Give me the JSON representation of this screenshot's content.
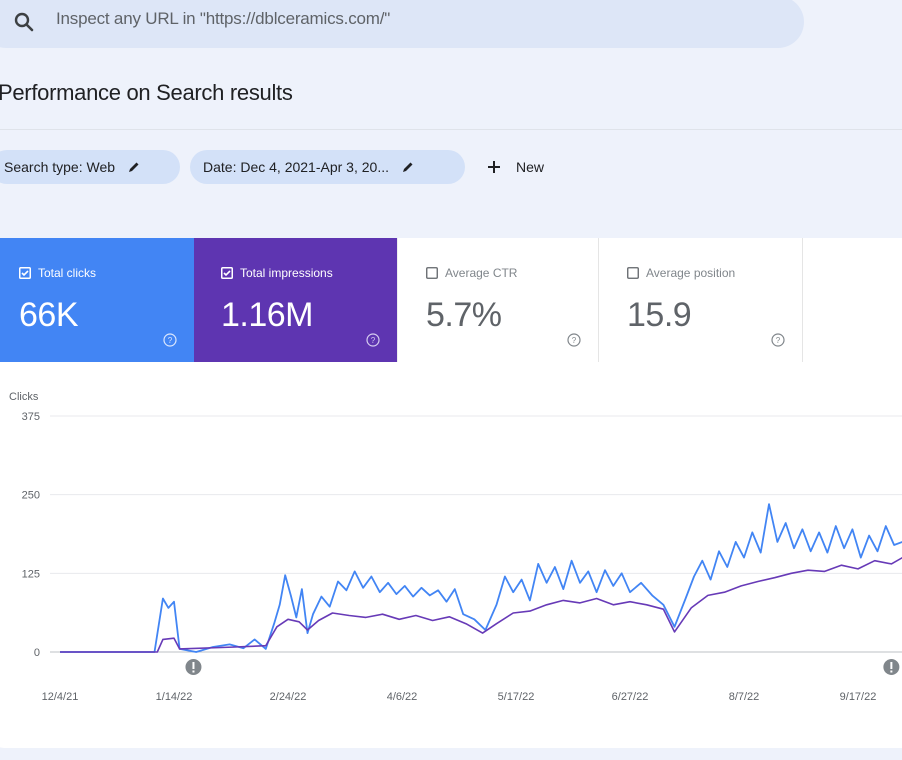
{
  "search": {
    "placeholder": "Inspect any URL in \"https://dblceramics.com/\"",
    "icon": "search-icon"
  },
  "page": {
    "title": "Performance on Search results"
  },
  "filters": {
    "search_type": "Search type: Web",
    "date": "Date: Dec 4, 2021-Apr 3, 20...",
    "new_label": "New"
  },
  "metrics": [
    {
      "label": "Total clicks",
      "value": "66K",
      "checked": true,
      "color": "#4285f4"
    },
    {
      "label": "Total impressions",
      "value": "1.16M",
      "checked": true,
      "color": "#5e35b1"
    },
    {
      "label": "Average CTR",
      "value": "5.7%",
      "checked": false
    },
    {
      "label": "Average position",
      "value": "15.9",
      "checked": false
    }
  ],
  "colors": {
    "clicks": "#4285f4",
    "impressions": "#673ab7",
    "grid": "#e8eaed",
    "chip": "#d3e1f8"
  },
  "chart_data": {
    "type": "line",
    "ylabel": "Clicks",
    "ylim": [
      0,
      375
    ],
    "y_ticks": [
      "0",
      "125",
      "250",
      "375"
    ],
    "x_ticks": [
      "12/4/21",
      "1/14/22",
      "2/24/22",
      "4/6/22",
      "5/17/22",
      "6/27/22",
      "8/7/22",
      "9/17/22"
    ],
    "annotation_markers": [
      "1/21/22",
      "9/29/22"
    ],
    "series": [
      {
        "color": "#4285f4",
        "points": [
          [
            "2021-12-04",
            0
          ],
          [
            "2021-12-20",
            0
          ],
          [
            "2022-01-07",
            0
          ],
          [
            "2022-01-10",
            85
          ],
          [
            "2022-01-12",
            70
          ],
          [
            "2022-01-14",
            80
          ],
          [
            "2022-01-16",
            5
          ],
          [
            "2022-01-22",
            0
          ],
          [
            "2022-01-28",
            8
          ],
          [
            "2022-02-03",
            12
          ],
          [
            "2022-02-08",
            6
          ],
          [
            "2022-02-12",
            20
          ],
          [
            "2022-02-16",
            5
          ],
          [
            "2022-02-19",
            45
          ],
          [
            "2022-02-21",
            75
          ],
          [
            "2022-02-23",
            122
          ],
          [
            "2022-02-25",
            90
          ],
          [
            "2022-02-27",
            55
          ],
          [
            "2022-03-01",
            100
          ],
          [
            "2022-03-03",
            30
          ],
          [
            "2022-03-05",
            60
          ],
          [
            "2022-03-08",
            88
          ],
          [
            "2022-03-11",
            72
          ],
          [
            "2022-03-14",
            112
          ],
          [
            "2022-03-17",
            98
          ],
          [
            "2022-03-20",
            128
          ],
          [
            "2022-03-23",
            102
          ],
          [
            "2022-03-26",
            120
          ],
          [
            "2022-03-29",
            95
          ],
          [
            "2022-04-01",
            110
          ],
          [
            "2022-04-04",
            92
          ],
          [
            "2022-04-07",
            105
          ],
          [
            "2022-04-10",
            88
          ],
          [
            "2022-04-13",
            102
          ],
          [
            "2022-04-16",
            90
          ],
          [
            "2022-04-19",
            98
          ],
          [
            "2022-04-22",
            80
          ],
          [
            "2022-04-25",
            100
          ],
          [
            "2022-04-28",
            60
          ],
          [
            "2022-05-02",
            52
          ],
          [
            "2022-05-06",
            35
          ],
          [
            "2022-05-10",
            75
          ],
          [
            "2022-05-13",
            120
          ],
          [
            "2022-05-16",
            95
          ],
          [
            "2022-05-19",
            115
          ],
          [
            "2022-05-22",
            82
          ],
          [
            "2022-05-25",
            140
          ],
          [
            "2022-05-28",
            110
          ],
          [
            "2022-05-31",
            135
          ],
          [
            "2022-06-03",
            100
          ],
          [
            "2022-06-06",
            145
          ],
          [
            "2022-06-09",
            110
          ],
          [
            "2022-06-12",
            128
          ],
          [
            "2022-06-15",
            95
          ],
          [
            "2022-06-18",
            130
          ],
          [
            "2022-06-21",
            105
          ],
          [
            "2022-06-24",
            125
          ],
          [
            "2022-06-27",
            95
          ],
          [
            "2022-07-01",
            110
          ],
          [
            "2022-07-05",
            90
          ],
          [
            "2022-07-09",
            75
          ],
          [
            "2022-07-13",
            40
          ],
          [
            "2022-07-17",
            85
          ],
          [
            "2022-07-20",
            120
          ],
          [
            "2022-07-23",
            145
          ],
          [
            "2022-07-26",
            115
          ],
          [
            "2022-07-29",
            160
          ],
          [
            "2022-08-01",
            135
          ],
          [
            "2022-08-04",
            175
          ],
          [
            "2022-08-07",
            150
          ],
          [
            "2022-08-10",
            190
          ],
          [
            "2022-08-13",
            158
          ],
          [
            "2022-08-16",
            235
          ],
          [
            "2022-08-19",
            175
          ],
          [
            "2022-08-22",
            205
          ],
          [
            "2022-08-25",
            165
          ],
          [
            "2022-08-28",
            195
          ],
          [
            "2022-08-31",
            160
          ],
          [
            "2022-09-03",
            190
          ],
          [
            "2022-09-06",
            158
          ],
          [
            "2022-09-09",
            200
          ],
          [
            "2022-09-12",
            165
          ],
          [
            "2022-09-15",
            195
          ],
          [
            "2022-09-18",
            150
          ],
          [
            "2022-09-21",
            185
          ],
          [
            "2022-09-24",
            160
          ],
          [
            "2022-09-27",
            200
          ],
          [
            "2022-09-30",
            170
          ],
          [
            "2022-10-03",
            175
          ]
        ]
      },
      {
        "color": "#673ab7",
        "points": [
          [
            "2021-12-04",
            0
          ],
          [
            "2022-01-08",
            0
          ],
          [
            "2022-01-10",
            20
          ],
          [
            "2022-01-14",
            22
          ],
          [
            "2022-01-16",
            5
          ],
          [
            "2022-02-05",
            8
          ],
          [
            "2022-02-16",
            10
          ],
          [
            "2022-02-20",
            40
          ],
          [
            "2022-02-24",
            52
          ],
          [
            "2022-02-28",
            48
          ],
          [
            "2022-03-03",
            35
          ],
          [
            "2022-03-07",
            50
          ],
          [
            "2022-03-12",
            62
          ],
          [
            "2022-03-18",
            58
          ],
          [
            "2022-03-24",
            55
          ],
          [
            "2022-03-30",
            60
          ],
          [
            "2022-04-05",
            52
          ],
          [
            "2022-04-11",
            58
          ],
          [
            "2022-04-17",
            50
          ],
          [
            "2022-04-23",
            56
          ],
          [
            "2022-04-29",
            45
          ],
          [
            "2022-05-05",
            30
          ],
          [
            "2022-05-10",
            45
          ],
          [
            "2022-05-16",
            62
          ],
          [
            "2022-05-22",
            65
          ],
          [
            "2022-05-28",
            75
          ],
          [
            "2022-06-03",
            82
          ],
          [
            "2022-06-09",
            78
          ],
          [
            "2022-06-15",
            85
          ],
          [
            "2022-06-21",
            75
          ],
          [
            "2022-06-27",
            80
          ],
          [
            "2022-07-03",
            75
          ],
          [
            "2022-07-09",
            68
          ],
          [
            "2022-07-13",
            32
          ],
          [
            "2022-07-19",
            70
          ],
          [
            "2022-07-25",
            90
          ],
          [
            "2022-07-31",
            95
          ],
          [
            "2022-08-06",
            105
          ],
          [
            "2022-08-12",
            112
          ],
          [
            "2022-08-18",
            118
          ],
          [
            "2022-08-24",
            125
          ],
          [
            "2022-08-30",
            130
          ],
          [
            "2022-09-05",
            128
          ],
          [
            "2022-09-11",
            138
          ],
          [
            "2022-09-17",
            132
          ],
          [
            "2022-09-23",
            145
          ],
          [
            "2022-09-29",
            140
          ],
          [
            "2022-10-03",
            150
          ]
        ]
      }
    ]
  }
}
